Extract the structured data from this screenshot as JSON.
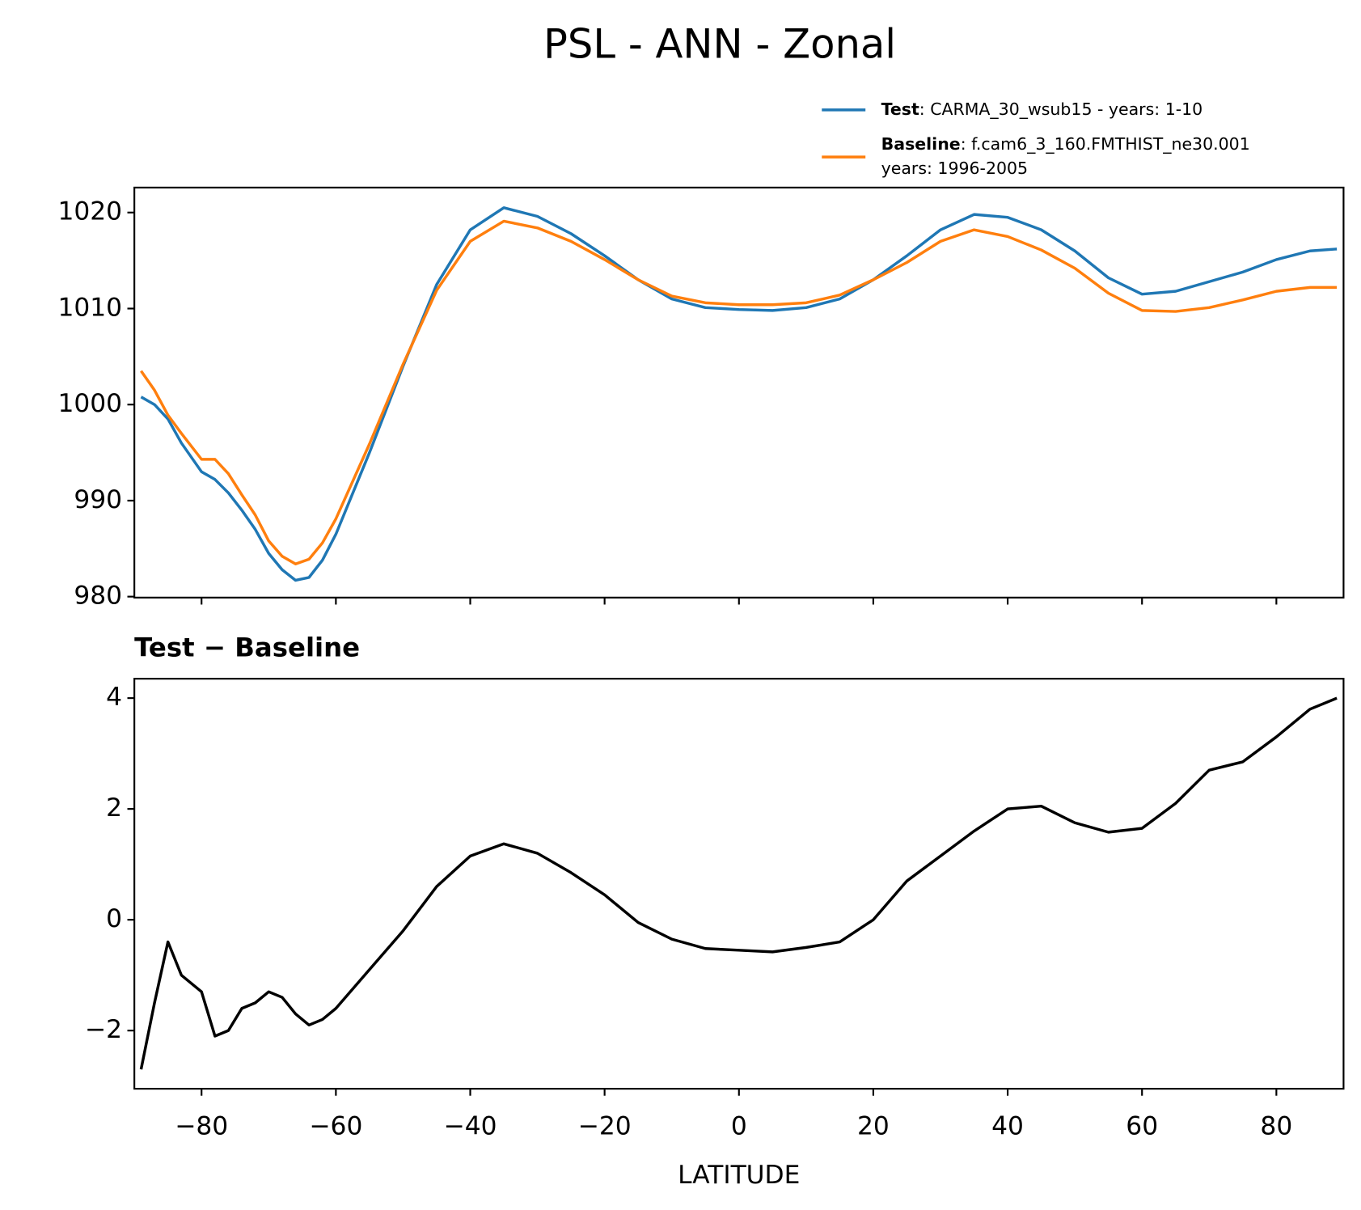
{
  "title": "PSL - ANN - Zonal",
  "chart_data": [
    {
      "type": "line",
      "x": [
        -89,
        -87,
        -85,
        -83,
        -80,
        -78,
        -76,
        -74,
        -72,
        -70,
        -68,
        -66,
        -64,
        -62,
        -60,
        -55,
        -50,
        -45,
        -40,
        -35,
        -30,
        -25,
        -20,
        -15,
        -10,
        -5,
        0,
        5,
        10,
        15,
        20,
        25,
        30,
        35,
        40,
        45,
        50,
        55,
        60,
        65,
        70,
        75,
        80,
        85,
        89
      ],
      "series": [
        {
          "name": "Test",
          "legend_text": [
            ": CARMA_30_wsub15 - years: 1-10"
          ],
          "color": "#1f77b4",
          "values": [
            1000.8,
            1000,
            998.5,
            996,
            993,
            992.2,
            990.8,
            989,
            987,
            984.5,
            982.8,
            981.7,
            982,
            983.8,
            986.5,
            995,
            1004,
            1012.5,
            1018.2,
            1020.5,
            1019.6,
            1017.8,
            1015.5,
            1013,
            1011,
            1010.1,
            1009.9,
            1009.8,
            1010.1,
            1011,
            1013,
            1015.5,
            1018.2,
            1019.8,
            1019.5,
            1018.2,
            1016,
            1013.2,
            1011.5,
            1011.8,
            1012.8,
            1013.8,
            1015.1,
            1016,
            1016.2
          ]
        },
        {
          "name": "Baseline",
          "legend_text": [
            ": f.cam6_3_160.FMTHIST_ne30.001",
            "years: 1996-2005"
          ],
          "color": "#ff7f0e",
          "values": [
            1003.5,
            1001.5,
            998.9,
            997,
            994.3,
            994.3,
            992.8,
            990.6,
            988.5,
            985.8,
            984.2,
            983.4,
            983.9,
            985.6,
            988.1,
            995.9,
            1004.2,
            1011.9,
            1017,
            1019.1,
            1018.4,
            1017,
            1015.1,
            1013,
            1011.3,
            1010.6,
            1010.4,
            1010.4,
            1010.6,
            1011.4,
            1013,
            1014.8,
            1017,
            1018.2,
            1017.5,
            1016.1,
            1014.2,
            1011.6,
            1009.8,
            1009.7,
            1010.1,
            1010.9,
            1011.8,
            1012.2,
            1012.2
          ]
        }
      ],
      "xlim": [
        -90,
        90
      ],
      "xticks": [
        -80,
        -60,
        -40,
        -20,
        0,
        20,
        40,
        60,
        80
      ],
      "ylim": [
        979.9,
        1022.6
      ],
      "yticks": [
        980,
        990,
        1000,
        1010,
        1020
      ]
    },
    {
      "type": "line",
      "title": "Test − Baseline",
      "x_label": "LATITUDE",
      "x": [
        -89,
        -87,
        -85,
        -83,
        -80,
        -78,
        -76,
        -74,
        -72,
        -70,
        -68,
        -66,
        -64,
        -62,
        -60,
        -55,
        -50,
        -45,
        -40,
        -35,
        -30,
        -25,
        -20,
        -15,
        -10,
        -5,
        0,
        5,
        10,
        15,
        20,
        25,
        30,
        35,
        40,
        45,
        50,
        55,
        60,
        65,
        70,
        75,
        80,
        85,
        89
      ],
      "series": [
        {
          "name": "Test − Baseline",
          "color": "#000000",
          "values": [
            -2.7,
            -1.5,
            -0.4,
            -1.0,
            -1.3,
            -2.1,
            -2.0,
            -1.6,
            -1.5,
            -1.3,
            -1.4,
            -1.7,
            -1.9,
            -1.8,
            -1.6,
            -0.9,
            -0.2,
            0.6,
            1.15,
            1.37,
            1.2,
            0.85,
            0.45,
            -0.05,
            -0.35,
            -0.52,
            -0.55,
            -0.58,
            -0.5,
            -0.4,
            0,
            0.7,
            1.15,
            1.6,
            2.0,
            2.05,
            1.75,
            1.58,
            1.65,
            2.1,
            2.7,
            2.85,
            3.3,
            3.8,
            4.0
          ]
        }
      ],
      "xlim": [
        -90,
        90
      ],
      "xticks": [
        {
          "value": -80,
          "label": "−80"
        },
        {
          "value": -60,
          "label": "−60"
        },
        {
          "value": -40,
          "label": "−40"
        },
        {
          "value": -20,
          "label": "−20"
        },
        0,
        20,
        40,
        60,
        80
      ],
      "ylim": [
        -3.05,
        4.35
      ],
      "yticks": [
        {
          "value": -2,
          "label": "−2"
        },
        0,
        2,
        4
      ]
    }
  ]
}
